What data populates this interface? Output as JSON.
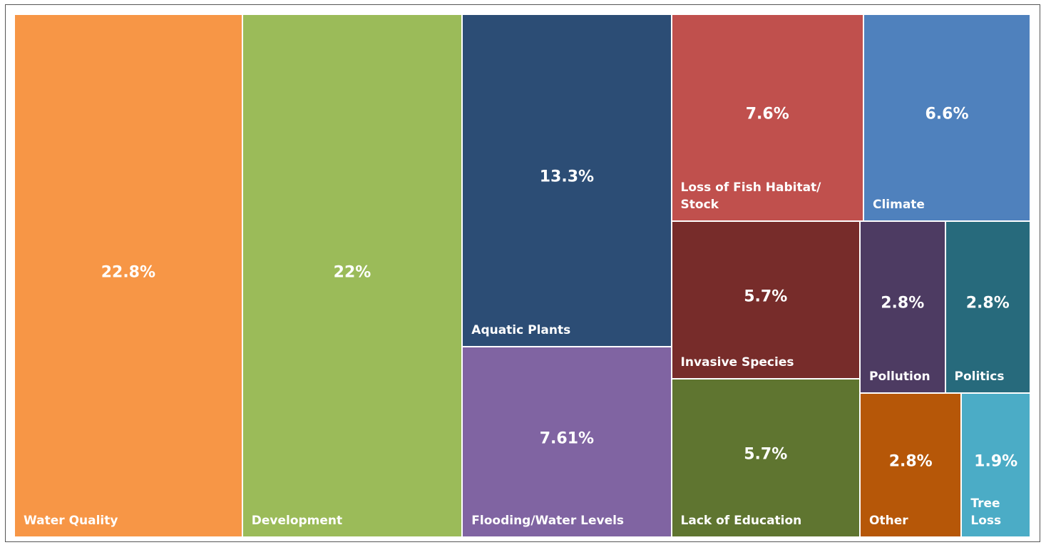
{
  "chart_data": {
    "type": "treemap",
    "categories": [
      "Water Quality",
      "Development",
      "Aquatic Plants",
      "Flooding/Water Levels",
      "Loss of Fish Habitat/ Stock",
      "Climate",
      "Invasive Species",
      "Lack of Education",
      "Pollution",
      "Politics",
      "Other",
      "Tree Loss"
    ],
    "values": [
      22.8,
      22,
      13.3,
      7.61,
      7.6,
      6.6,
      5.7,
      5.7,
      2.8,
      2.8,
      2.8,
      1.9
    ],
    "value_labels": [
      "22.8%",
      "22%",
      "13.3%",
      "7.61%",
      "7.6%",
      "6.6%",
      "5.7%",
      "5.7%",
      "2.8%",
      "2.8%",
      "2.8%",
      "1.9%"
    ],
    "colors": [
      "#f79646",
      "#9bbb59",
      "#2c4d75",
      "#8064a2",
      "#c0504d",
      "#4f81bd",
      "#772c2a",
      "#5f7530",
      "#4d3b62",
      "#276a7c",
      "#b65708",
      "#4bacc6"
    ]
  }
}
